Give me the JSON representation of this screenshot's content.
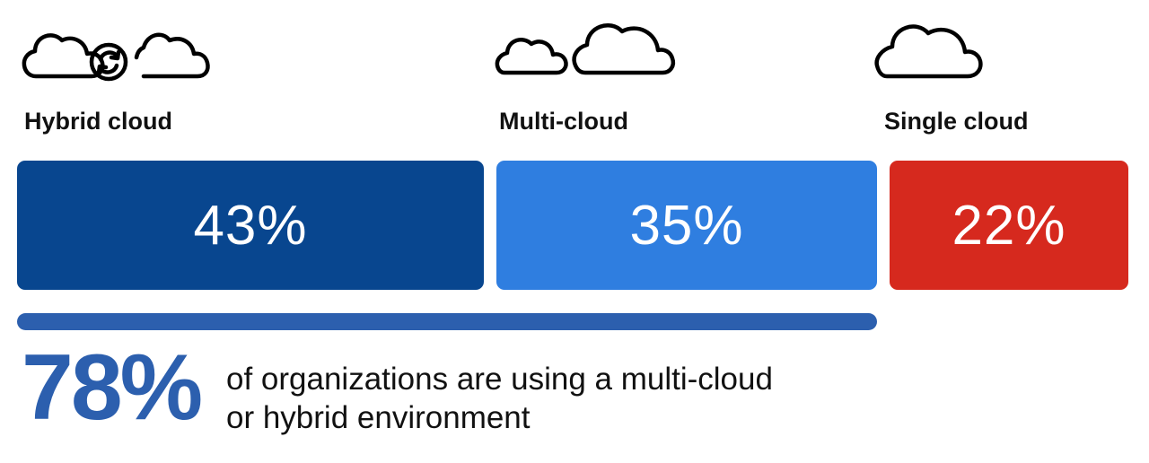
{
  "chart_data": {
    "type": "bar",
    "orientation": "horizontal-stacked",
    "categories": [
      "Hybrid cloud",
      "Multi-cloud",
      "Single cloud"
    ],
    "values": [
      43,
      35,
      22
    ],
    "value_labels": [
      "43%",
      "35%",
      "22%"
    ],
    "colors": [
      "#08468f",
      "#2f7ee0",
      "#d6291e"
    ],
    "unit": "%",
    "title": "",
    "xlabel": "",
    "ylabel": ""
  },
  "icons": [
    "hybrid-cloud-icon",
    "multi-cloud-icon",
    "single-cloud-icon"
  ],
  "summary": {
    "stat": "78%",
    "text_line1": "of organizations are using a multi-cloud",
    "text_line2": "or hybrid environment",
    "covers_categories": [
      "Hybrid cloud",
      "Multi-cloud"
    ],
    "color": "#2c5fae"
  }
}
